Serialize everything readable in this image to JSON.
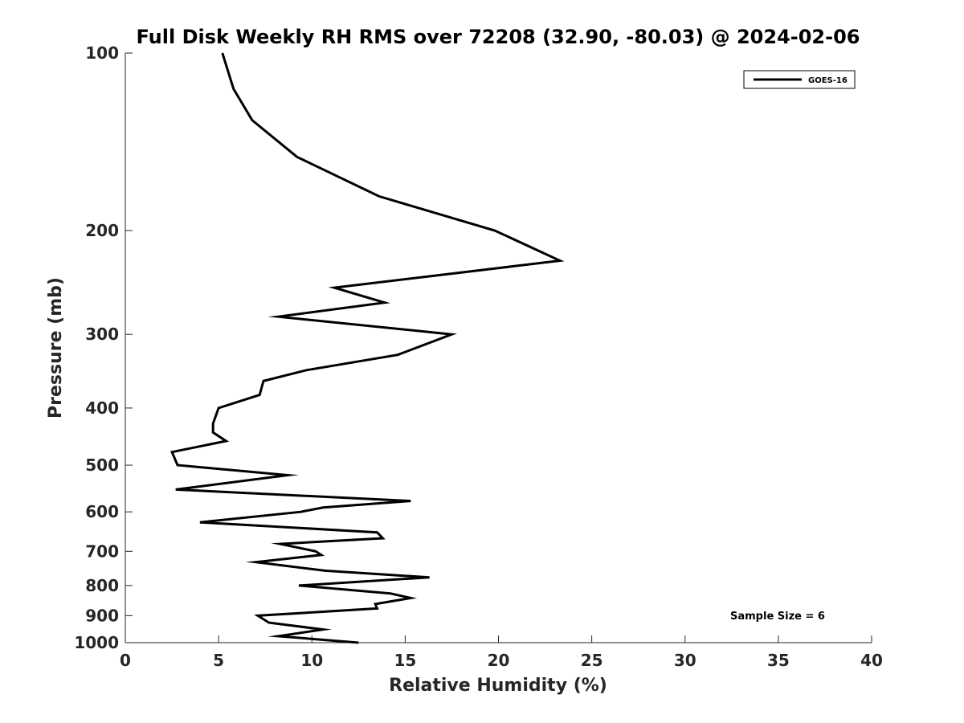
{
  "chart_data": {
    "type": "line",
    "title": "Full Disk Weekly RH RMS over 72208 (32.90, -80.03) @ 2024-02-06",
    "xlabel": "Relative Humidity (%)",
    "ylabel": "Pressure (mb)",
    "xlim": [
      0,
      40
    ],
    "ylim": [
      100,
      1000
    ],
    "y_scale": "log",
    "y_reversed": true,
    "x_ticks": [
      0,
      5,
      10,
      15,
      20,
      25,
      30,
      35,
      40
    ],
    "y_ticks": [
      100,
      200,
      300,
      400,
      500,
      600,
      700,
      800,
      900,
      1000
    ],
    "grid": false,
    "legend_position": "top-right",
    "annotation": "Sample Size = 6",
    "series": [
      {
        "name": "GOES-16",
        "color": "#000000",
        "points": [
          [
            5.2,
            100
          ],
          [
            5.8,
            115
          ],
          [
            6.8,
            130
          ],
          [
            9.2,
            150
          ],
          [
            13.6,
            175
          ],
          [
            19.8,
            200
          ],
          [
            23.3,
            225
          ],
          [
            11.2,
            250
          ],
          [
            13.9,
            265
          ],
          [
            8.2,
            280
          ],
          [
            17.5,
            300
          ],
          [
            14.6,
            325
          ],
          [
            9.7,
            345
          ],
          [
            7.4,
            360
          ],
          [
            7.2,
            380
          ],
          [
            5.0,
            400
          ],
          [
            4.7,
            425
          ],
          [
            4.7,
            440
          ],
          [
            5.4,
            455
          ],
          [
            2.5,
            475
          ],
          [
            2.8,
            500
          ],
          [
            8.7,
            520
          ],
          [
            2.7,
            550
          ],
          [
            15.3,
            575
          ],
          [
            10.6,
            590
          ],
          [
            9.4,
            600
          ],
          [
            4.0,
            625
          ],
          [
            13.5,
            650
          ],
          [
            13.8,
            665
          ],
          [
            8.3,
            680
          ],
          [
            10.2,
            700
          ],
          [
            10.5,
            710
          ],
          [
            7.0,
            730
          ],
          [
            10.7,
            755
          ],
          [
            16.3,
            775
          ],
          [
            9.3,
            800
          ],
          [
            14.2,
            825
          ],
          [
            15.3,
            840
          ],
          [
            13.4,
            860
          ],
          [
            13.5,
            875
          ],
          [
            7.1,
            900
          ],
          [
            7.7,
            925
          ],
          [
            10.6,
            950
          ],
          [
            8.2,
            975
          ],
          [
            12.5,
            1000
          ]
        ]
      }
    ]
  }
}
